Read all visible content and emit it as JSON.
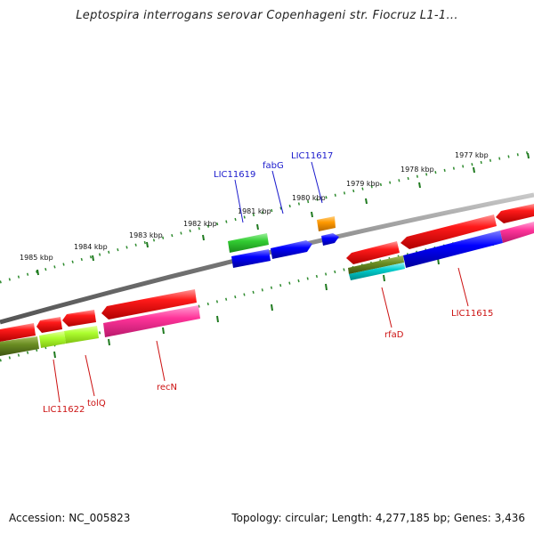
{
  "title": "Leptospira interrogans serovar Copenhageni str. Fiocruz L1-1...",
  "footer": {
    "accession": "Accession: NC_005823",
    "summary": "Topology: circular; Length: 4,277,185 bp; Genes: 3,436"
  },
  "colors": {
    "backbone": "#7a7a7a",
    "ruler_dots": "#2e8b2e",
    "label_blue": "#1a1acc",
    "label_red": "#cc1111"
  },
  "ruler_outer": {
    "labels": [
      "1985 kbp",
      "1984 kbp",
      "1983 kbp",
      "1982 kbp",
      "1981 kbp",
      "1980 kbp",
      "1979 kbp",
      "1978 kbp",
      "1977 kbp"
    ]
  },
  "features": {
    "outer_labels": [
      {
        "name": "LIC11619",
        "color": "blue"
      },
      {
        "name": "fabG",
        "color": "blue"
      },
      {
        "name": "LIC11617",
        "color": "blue"
      }
    ],
    "inner_labels": [
      {
        "name": "LIC11622",
        "color": "red"
      },
      {
        "name": "tolQ",
        "color": "red"
      },
      {
        "name": "recN",
        "color": "red"
      },
      {
        "name": "rfaD",
        "color": "red"
      },
      {
        "name": "LIC11615",
        "color": "red"
      }
    ],
    "track_colors": [
      "#ff0000",
      "#ff3399",
      "#6b8e23",
      "#adff2f",
      "#0000ff",
      "#32cd32",
      "#ff9900",
      "#00cccc"
    ]
  }
}
